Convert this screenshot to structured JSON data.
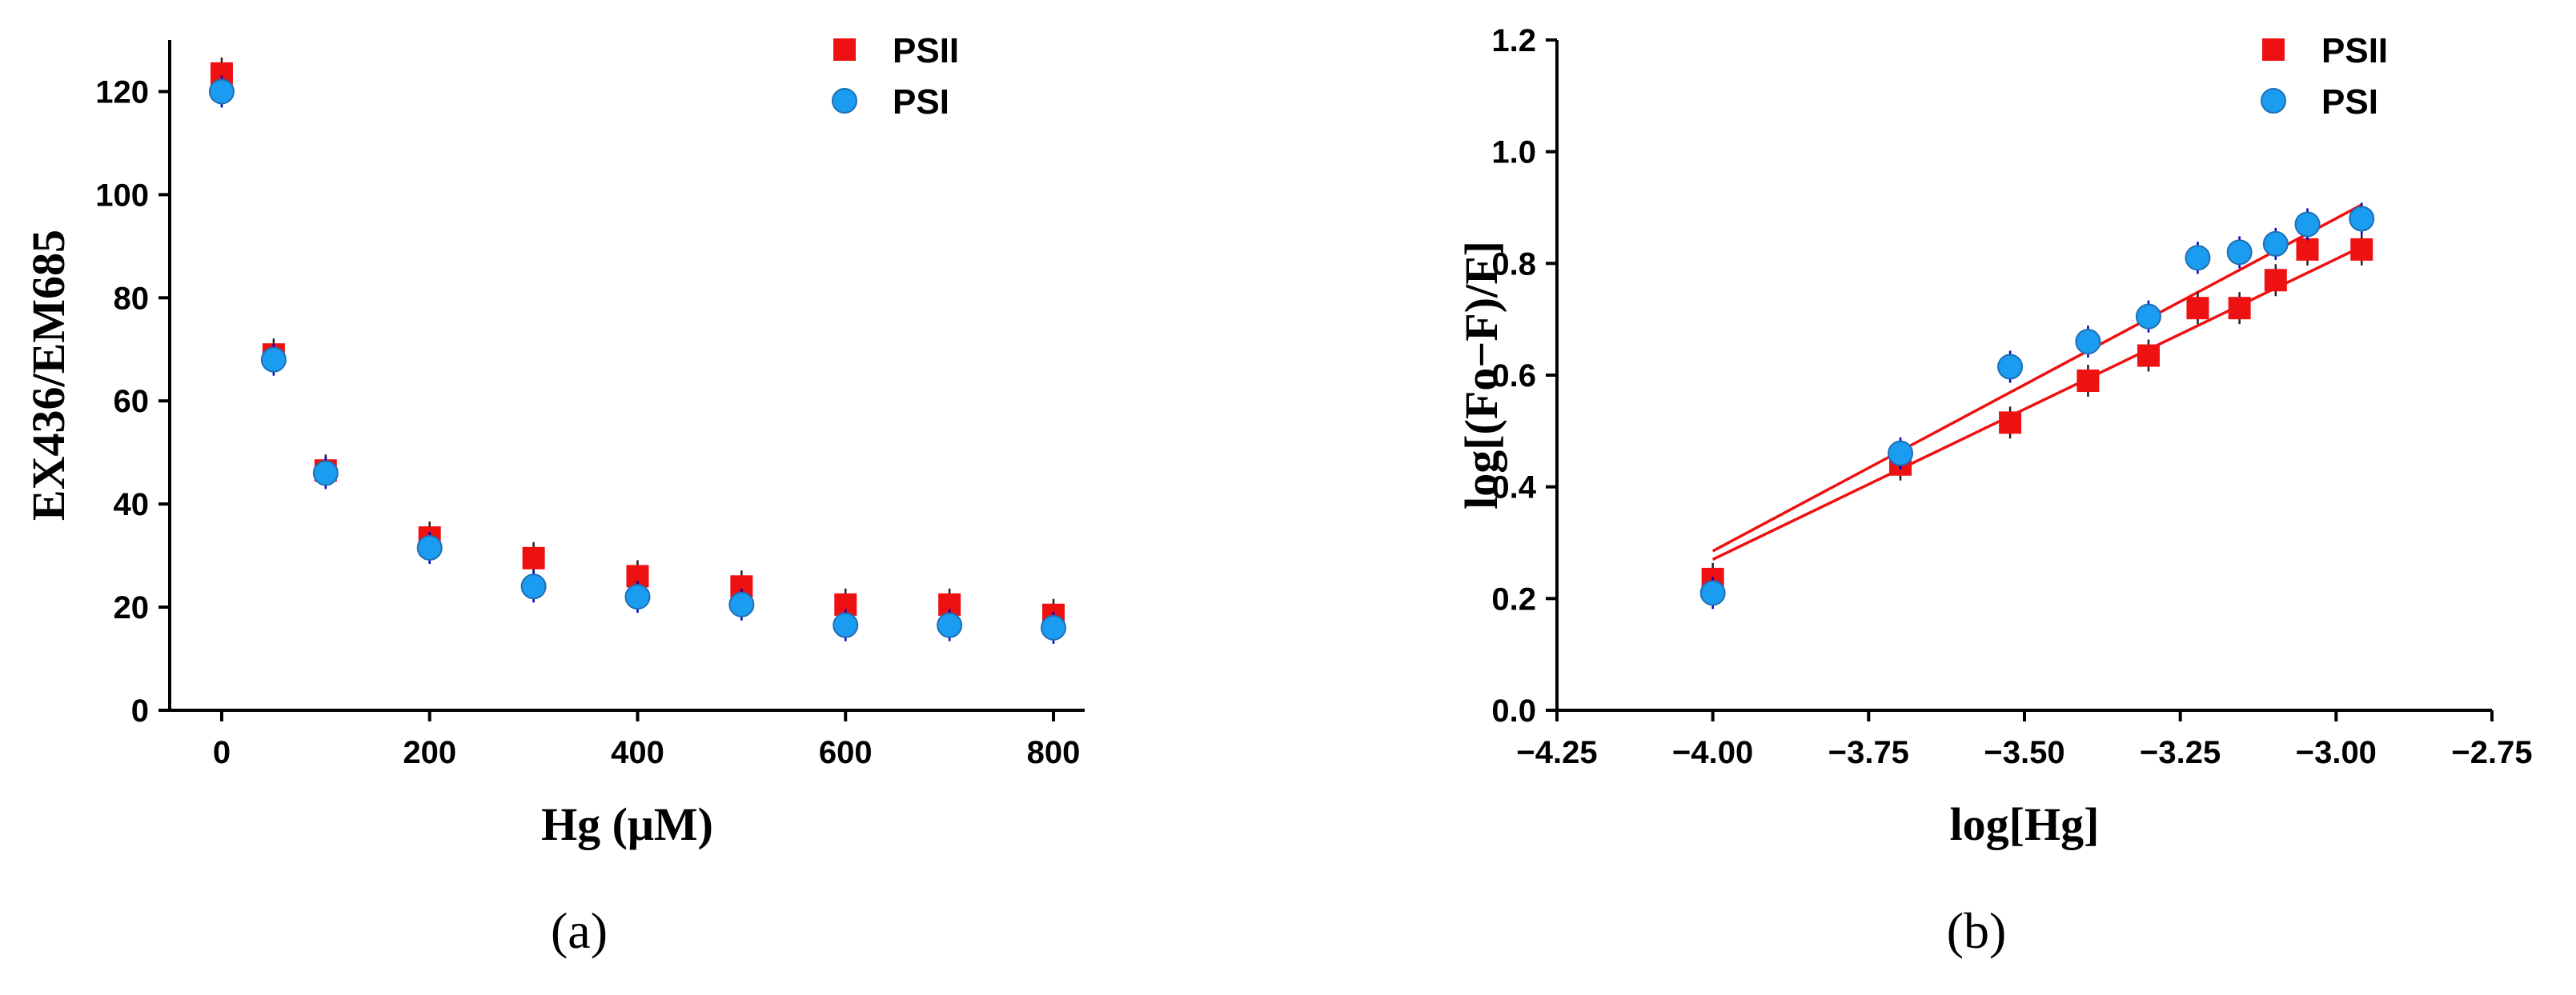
{
  "chart_data": [
    {
      "type": "scatter",
      "panel_label": "(a)",
      "xlabel": "Hg (μM)",
      "ylabel": "EX436/EM685",
      "xlim": [
        -50,
        830
      ],
      "ylim": [
        0,
        130
      ],
      "xticks": [
        0,
        200,
        400,
        600,
        800
      ],
      "yticks": [
        0,
        20,
        40,
        60,
        80,
        100,
        120
      ],
      "legend_position": "top-right",
      "series": [
        {
          "name": "PSII",
          "marker": "square",
          "color": "#ee1111",
          "points": [
            [
              0,
              123.5
            ],
            [
              50,
              69
            ],
            [
              100,
              46.5
            ],
            [
              200,
              33.5
            ],
            [
              300,
              29.5
            ],
            [
              400,
              26
            ],
            [
              500,
              24
            ],
            [
              600,
              20.5
            ],
            [
              700,
              20.5
            ],
            [
              800,
              18.5
            ]
          ]
        },
        {
          "name": "PSI",
          "marker": "circle",
          "color": "#1a9cf0",
          "points": [
            [
              0,
              120
            ],
            [
              50,
              68
            ],
            [
              100,
              46
            ],
            [
              200,
              31.5
            ],
            [
              300,
              24
            ],
            [
              400,
              22
            ],
            [
              500,
              20.5
            ],
            [
              600,
              16.5
            ],
            [
              700,
              16.5
            ],
            [
              800,
              16
            ]
          ]
        }
      ]
    },
    {
      "type": "scatter",
      "panel_label": "(b)",
      "xlabel": "log[Hg]",
      "ylabel": "log[(Fo−F)/F]",
      "xlim": [
        -4.25,
        -2.75
      ],
      "ylim": [
        0.0,
        1.2
      ],
      "xticks": [
        -4.25,
        -4.0,
        -3.75,
        -3.5,
        -3.25,
        -3.0,
        -2.75
      ],
      "xtick_labels": [
        "−4.25",
        "−4.00",
        "−3.75",
        "−3.50",
        "−3.25",
        "−3.00",
        "−2.75"
      ],
      "yticks": [
        0.0,
        0.2,
        0.4,
        0.6,
        0.8,
        1.0,
        1.2
      ],
      "ytick_labels": [
        "0.0",
        "0.2",
        "0.4",
        "0.6",
        "0.8",
        "1.0",
        "1.2"
      ],
      "legend_position": "top-right",
      "series": [
        {
          "name": "PSII",
          "marker": "square",
          "color": "#ee1111",
          "points": [
            [
              -4.0,
              0.235
            ],
            [
              -3.699,
              0.44
            ],
            [
              -3.523,
              0.515
            ],
            [
              -3.398,
              0.59
            ],
            [
              -3.301,
              0.635
            ],
            [
              -3.222,
              0.72
            ],
            [
              -3.155,
              0.72
            ],
            [
              -3.097,
              0.77
            ],
            [
              -3.046,
              0.825
            ],
            [
              -2.959,
              0.825
            ]
          ],
          "fit_line": [
            [
              -4.0,
              0.27
            ],
            [
              -2.959,
              0.83
            ]
          ]
        },
        {
          "name": "PSI",
          "marker": "circle",
          "color": "#1a9cf0",
          "points": [
            [
              -4.0,
              0.21
            ],
            [
              -3.699,
              0.46
            ],
            [
              -3.523,
              0.615
            ],
            [
              -3.398,
              0.66
            ],
            [
              -3.301,
              0.705
            ],
            [
              -3.222,
              0.81
            ],
            [
              -3.155,
              0.82
            ],
            [
              -3.097,
              0.835
            ],
            [
              -3.046,
              0.87
            ],
            [
              -2.959,
              0.88
            ]
          ],
          "fit_line": [
            [
              -4.0,
              0.285
            ],
            [
              -2.959,
              0.905
            ]
          ]
        }
      ],
      "fit_line_color": "#ee1111"
    }
  ]
}
